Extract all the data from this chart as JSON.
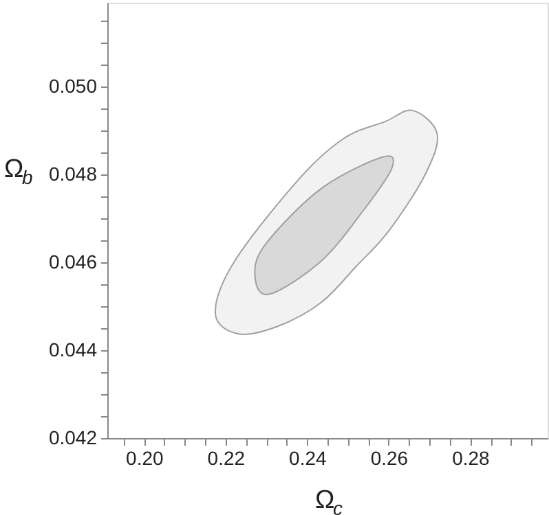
{
  "chart_data": {
    "type": "area",
    "xlabel": "Ω$_{c}$",
    "ylabel": "Ω$_{b}$",
    "xlim": [
      0.191,
      0.299
    ],
    "ylim": [
      0.042,
      0.0519
    ],
    "xticks": [
      {
        "value": 0.195,
        "label": null
      },
      {
        "value": 0.2,
        "label": "0.20"
      },
      {
        "value": 0.205,
        "label": null
      },
      {
        "value": 0.21,
        "label": null
      },
      {
        "value": 0.215,
        "label": null
      },
      {
        "value": 0.22,
        "label": "0.22"
      },
      {
        "value": 0.225,
        "label": null
      },
      {
        "value": 0.23,
        "label": null
      },
      {
        "value": 0.235,
        "label": null
      },
      {
        "value": 0.24,
        "label": "0.24"
      },
      {
        "value": 0.245,
        "label": null
      },
      {
        "value": 0.25,
        "label": null
      },
      {
        "value": 0.255,
        "label": null
      },
      {
        "value": 0.26,
        "label": "0.26"
      },
      {
        "value": 0.265,
        "label": null
      },
      {
        "value": 0.27,
        "label": null
      },
      {
        "value": 0.275,
        "label": null
      },
      {
        "value": 0.28,
        "label": "0.28"
      },
      {
        "value": 0.285,
        "label": null
      },
      {
        "value": 0.29,
        "label": null
      },
      {
        "value": 0.295,
        "label": null
      }
    ],
    "yticks": [
      {
        "value": 0.042,
        "label": "0.042"
      },
      {
        "value": 0.0425,
        "label": null
      },
      {
        "value": 0.043,
        "label": null
      },
      {
        "value": 0.0435,
        "label": null
      },
      {
        "value": 0.044,
        "label": "0.044"
      },
      {
        "value": 0.0445,
        "label": null
      },
      {
        "value": 0.045,
        "label": null
      },
      {
        "value": 0.0455,
        "label": null
      },
      {
        "value": 0.046,
        "label": "0.046"
      },
      {
        "value": 0.0465,
        "label": null
      },
      {
        "value": 0.047,
        "label": null
      },
      {
        "value": 0.0475,
        "label": null
      },
      {
        "value": 0.048,
        "label": "0.048"
      },
      {
        "value": 0.0485,
        "label": null
      },
      {
        "value": 0.049,
        "label": null
      },
      {
        "value": 0.0495,
        "label": null
      },
      {
        "value": 0.05,
        "label": "0.050"
      },
      {
        "value": 0.0505,
        "label": null
      },
      {
        "value": 0.051,
        "label": null
      },
      {
        "value": 0.0515,
        "label": null
      }
    ],
    "grid": false,
    "series": [
      {
        "color": "#f2f2f2",
        "x": [
          0.2175,
          0.2232,
          0.233,
          0.2434,
          0.252,
          0.2602,
          0.269,
          0.2719,
          0.2659,
          0.2592,
          0.2491,
          0.238,
          0.2222
        ],
        "values": [
          0.04483,
          0.04437,
          0.04455,
          0.04508,
          0.0459,
          0.04673,
          0.048,
          0.04892,
          0.04945,
          0.0492,
          0.04882,
          0.04789,
          0.04602
        ]
      },
      {
        "color": "#d9d9d9",
        "x": [
          0.2272,
          0.2306,
          0.2434,
          0.254,
          0.2608,
          0.2585,
          0.2434,
          0.2299
        ],
        "values": [
          0.04571,
          0.04527,
          0.04602,
          0.0472,
          0.04814,
          0.04839,
          0.04767,
          0.04642
        ]
      }
    ]
  }
}
